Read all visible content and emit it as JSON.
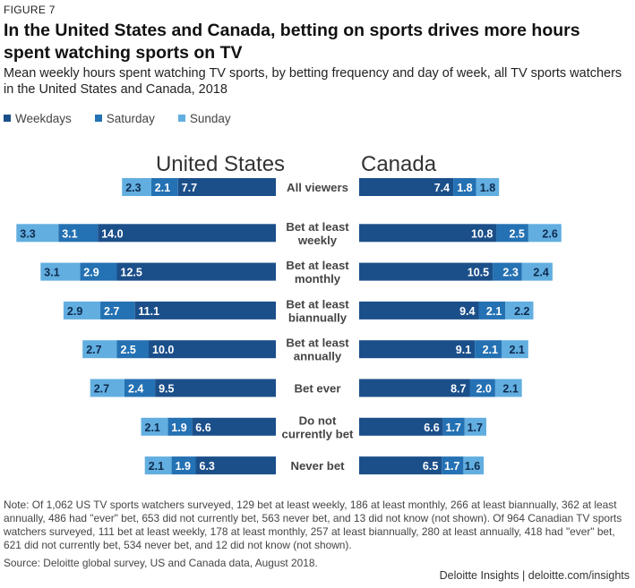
{
  "figure_label": "FIGURE 7",
  "title": "In the United States and Canada, betting on sports drives more hours spent watching sports on TV",
  "subtitle": "Mean weekly hours spent watching TV sports, by betting frequency and day of week, all TV sports watchers in the United States and Canada, 2018",
  "legend": [
    {
      "label": "Weekdays",
      "color": "#1b4f8a"
    },
    {
      "label": "Saturday",
      "color": "#2471b3"
    },
    {
      "label": "Sunday",
      "color": "#62aee0"
    }
  ],
  "note": "Note: Of 1,062 US TV sports watchers surveyed, 129 bet at least weekly, 186 at least monthly, 266 at least biannually, 362 at least annually, 486 had \"ever\" bet, 653 did not currently bet, 563 never bet, and 13 did not know (not shown). Of 964 Canadian TV sports watchers surveyed, 111 bet at least weekly, 178 at least monthly, 257 at least biannually, 280 at least annually, 418 had \"ever\" bet, 621 did not currently bet, 534 never bet, and 12 did not know (not shown).",
  "source": "Source: Deloitte global survey, US and Canada data, August 2018.",
  "footer": "Deloitte Insights | deloitte.com/insights",
  "chart_data": {
    "type": "bar",
    "orientation": "horizontal",
    "stacked": true,
    "layout": "butterfly",
    "categories": [
      "All viewers",
      "Bet at least weekly",
      "Bet at least monthly",
      "Bet at least biannually",
      "Bet at least annually",
      "Bet ever",
      "Do not currently bet",
      "Never bet"
    ],
    "category_lines": [
      [
        "All viewers"
      ],
      [
        "Bet at least",
        "weekly"
      ],
      [
        "Bet at least",
        "monthly"
      ],
      [
        "Bet at least",
        "biannually"
      ],
      [
        "Bet at least",
        "annually"
      ],
      [
        "Bet ever"
      ],
      [
        "Do not",
        "currently bet"
      ],
      [
        "Never bet"
      ]
    ],
    "panels": [
      {
        "name": "United States",
        "series": [
          {
            "name": "Weekdays",
            "values": [
              7.7,
              14.0,
              12.5,
              11.1,
              10.0,
              9.5,
              6.6,
              6.3
            ]
          },
          {
            "name": "Saturday",
            "values": [
              2.1,
              3.1,
              2.9,
              2.7,
              2.5,
              2.4,
              1.9,
              1.9
            ]
          },
          {
            "name": "Sunday",
            "values": [
              2.3,
              3.3,
              3.1,
              2.9,
              2.7,
              2.7,
              2.1,
              2.1
            ]
          }
        ]
      },
      {
        "name": "Canada",
        "series": [
          {
            "name": "Weekdays",
            "values": [
              7.4,
              10.8,
              10.5,
              9.4,
              9.1,
              8.7,
              6.6,
              6.5
            ]
          },
          {
            "name": "Saturday",
            "values": [
              1.8,
              2.5,
              2.3,
              2.1,
              2.1,
              2.0,
              1.7,
              1.7
            ]
          },
          {
            "name": "Sunday",
            "values": [
              1.8,
              2.6,
              2.4,
              2.2,
              2.1,
              2.1,
              1.7,
              1.6
            ]
          }
        ]
      }
    ],
    "legend_position": "top-left",
    "grid": false
  }
}
